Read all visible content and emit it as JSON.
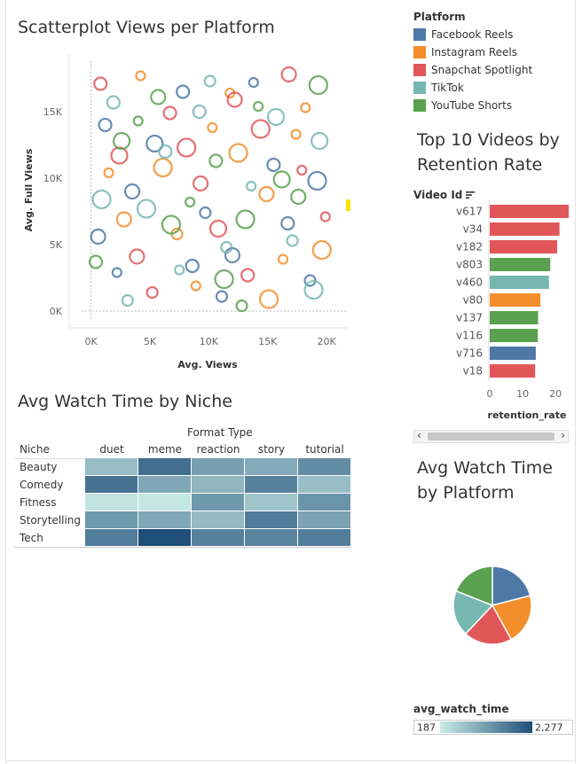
{
  "scatter": {
    "title": "Scatterplot Views per Platform",
    "chart_data": {
      "type": "scatter",
      "title": "Scatterplot Views per Platform",
      "xlabel": "Avg. Views",
      "ylabel": "Avg. Full Views",
      "x_ticks": [
        "0K",
        "5K",
        "10K",
        "15K",
        "20K"
      ],
      "y_ticks": [
        "0K",
        "5K",
        "10K",
        "15K"
      ],
      "xlim": [
        -800,
        21800
      ],
      "ylim": [
        -600,
        18800
      ],
      "marker": "open-circle",
      "series": [
        {
          "name": "Facebook Reels",
          "points": [
            [
              1200,
              14000
            ],
            [
              3500,
              9000
            ],
            [
              7800,
              16500
            ],
            [
              12000,
              4200
            ],
            [
              15500,
              11000
            ],
            [
              18600,
              2300
            ],
            [
              2200,
              2900
            ],
            [
              9700,
              7400
            ],
            [
              13800,
              17200
            ],
            [
              19200,
              9800
            ],
            [
              5400,
              12600
            ],
            [
              11100,
              1100
            ],
            [
              16700,
              6600
            ],
            [
              600,
              5600
            ],
            [
              8600,
              3400
            ]
          ]
        },
        {
          "name": "Instagram Reels",
          "points": [
            [
              4200,
              17700
            ],
            [
              6100,
              10800
            ],
            [
              10300,
              13800
            ],
            [
              14900,
              8800
            ],
            [
              18200,
              15300
            ],
            [
              2800,
              6900
            ],
            [
              8900,
              1900
            ],
            [
              12500,
              11900
            ],
            [
              16300,
              3900
            ],
            [
              19600,
              4600
            ],
            [
              1500,
              10400
            ],
            [
              7300,
              5800
            ],
            [
              11800,
              16400
            ],
            [
              15100,
              900
            ],
            [
              17400,
              13300
            ]
          ]
        },
        {
          "name": "Snapchat Spotlight",
          "points": [
            [
              800,
              17100
            ],
            [
              3900,
              4100
            ],
            [
              6700,
              14900
            ],
            [
              9300,
              9600
            ],
            [
              13300,
              2700
            ],
            [
              16800,
              17800
            ],
            [
              19900,
              7100
            ],
            [
              5200,
              1400
            ],
            [
              10800,
              6200
            ],
            [
              14400,
              13700
            ],
            [
              2400,
              11700
            ],
            [
              8100,
              12300
            ],
            [
              17900,
              10600
            ],
            [
              12200,
              15900
            ]
          ]
        },
        {
          "name": "TikTok",
          "points": [
            [
              1900,
              15700
            ],
            [
              4700,
              7700
            ],
            [
              7500,
              3100
            ],
            [
              10100,
              17300
            ],
            [
              13600,
              9400
            ],
            [
              17100,
              5300
            ],
            [
              19400,
              12800
            ],
            [
              3100,
              800
            ],
            [
              6300,
              12000
            ],
            [
              11500,
              4800
            ],
            [
              15700,
              14600
            ],
            [
              900,
              8400
            ],
            [
              9200,
              15000
            ],
            [
              18900,
              1600
            ]
          ]
        },
        {
          "name": "YouTube Shorts",
          "points": [
            [
              2600,
              12800
            ],
            [
              5700,
              16100
            ],
            [
              8400,
              8200
            ],
            [
              11300,
              2400
            ],
            [
              14200,
              15400
            ],
            [
              17600,
              8600
            ],
            [
              400,
              3700
            ],
            [
              6800,
              6500
            ],
            [
              10600,
              11300
            ],
            [
              13100,
              6900
            ],
            [
              16200,
              9900
            ],
            [
              19300,
              17000
            ],
            [
              4000,
              14300
            ],
            [
              12800,
              400
            ]
          ]
        }
      ]
    }
  },
  "legend": {
    "title": "Platform",
    "items": [
      {
        "label": "Facebook Reels",
        "color": "#4e79a7"
      },
      {
        "label": "Instagram Reels",
        "color": "#f28e2b"
      },
      {
        "label": "Snapchat Spotlight",
        "color": "#e15759"
      },
      {
        "label": "TikTok",
        "color": "#76b7b2"
      },
      {
        "label": "YouTube Shorts",
        "color": "#59a14f"
      }
    ]
  },
  "top10": {
    "title_line1": "Top 10 Videos by",
    "title_line2": "Retention Rate",
    "dimension_label": "Video Id",
    "sort_icon": "sort-icon",
    "chart_data": {
      "type": "bar",
      "orientation": "horizontal",
      "xlabel": "retention_rate",
      "x_ticks": [
        "0",
        "10",
        "20"
      ],
      "xlim": [
        0,
        24
      ],
      "categories": [
        "v617",
        "v34",
        "v182",
        "v803",
        "v460",
        "v80",
        "v137",
        "v116",
        "v716",
        "v18"
      ],
      "values": [
        24.0,
        21.2,
        20.5,
        18.4,
        18.0,
        15.4,
        14.7,
        14.6,
        14.0,
        13.8
      ],
      "bar_colors": [
        "#e15759",
        "#e15759",
        "#e15759",
        "#59a14f",
        "#76b7b2",
        "#f28e2b",
        "#59a14f",
        "#59a14f",
        "#4e79a7",
        "#e15759"
      ]
    }
  },
  "heatmap": {
    "title": "Avg Watch Time by Niche",
    "column_group_label": "Format Type",
    "row_header": "Niche",
    "chart_data": {
      "type": "heatmap",
      "columns": [
        "duet",
        "meme",
        "reaction",
        "story",
        "tutorial"
      ],
      "rows": [
        "Beauty",
        "Comedy",
        "Fitness",
        "Storytelling",
        "Tech"
      ],
      "values": [
        [
          800,
          1850,
          1200,
          1050,
          1450
        ],
        [
          1800,
          1100,
          900,
          1600,
          800
        ],
        [
          300,
          250,
          1300,
          700,
          1350
        ],
        [
          1300,
          1100,
          850,
          1650,
          1150
        ],
        [
          1650,
          2277,
          1600,
          1550,
          1650
        ]
      ],
      "color_min": 187,
      "color_max": 2277
    }
  },
  "pie": {
    "title_line1": "Avg Watch Time",
    "title_line2": "by Platform",
    "chart_data": {
      "type": "pie",
      "labels": [
        "Facebook Reels",
        "Instagram Reels",
        "Snapchat Spotlight",
        "TikTok",
        "YouTube Shorts"
      ],
      "values": [
        21,
        21,
        20,
        19,
        19
      ],
      "colors": [
        "#4e79a7",
        "#f28e2b",
        "#e15759",
        "#76b7b2",
        "#59a14f"
      ]
    }
  },
  "color_legend": {
    "title": "avg_watch_time",
    "min_label": "187",
    "max_label": "2,277",
    "color_low": "#c9ece6",
    "color_high": "#1f4e79"
  }
}
